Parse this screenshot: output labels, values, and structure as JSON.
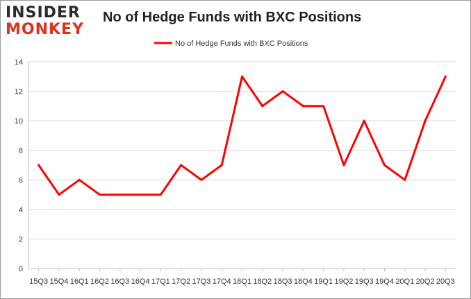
{
  "brand": {
    "logo_top": "INSIDER",
    "logo_bottom": "MONKEY"
  },
  "chart_data": {
    "type": "line",
    "title": "No of Hedge Funds with BXC Positions",
    "xlabel": "",
    "ylabel": "",
    "categories": [
      "15Q3",
      "15Q4",
      "16Q1",
      "16Q2",
      "16Q3",
      "16Q4",
      "17Q1",
      "17Q2",
      "17Q3",
      "17Q4",
      "18Q1",
      "18Q2",
      "18Q3",
      "18Q4",
      "19Q1",
      "19Q2",
      "19Q3",
      "19Q4",
      "20Q1",
      "20Q2",
      "20Q3"
    ],
    "series": [
      {
        "name": "No of Hedge Funds with BXC Positions",
        "color": "#ff0000",
        "values": [
          7,
          5,
          6,
          5,
          5,
          5,
          5,
          7,
          6,
          7,
          13,
          11,
          12,
          11,
          11,
          7,
          10,
          7,
          6,
          10,
          13
        ]
      }
    ],
    "ylim": [
      0,
      14
    ],
    "yticks": [
      0,
      2,
      4,
      6,
      8,
      10,
      12,
      14
    ],
    "grid": true,
    "legend_position": "top-center"
  }
}
